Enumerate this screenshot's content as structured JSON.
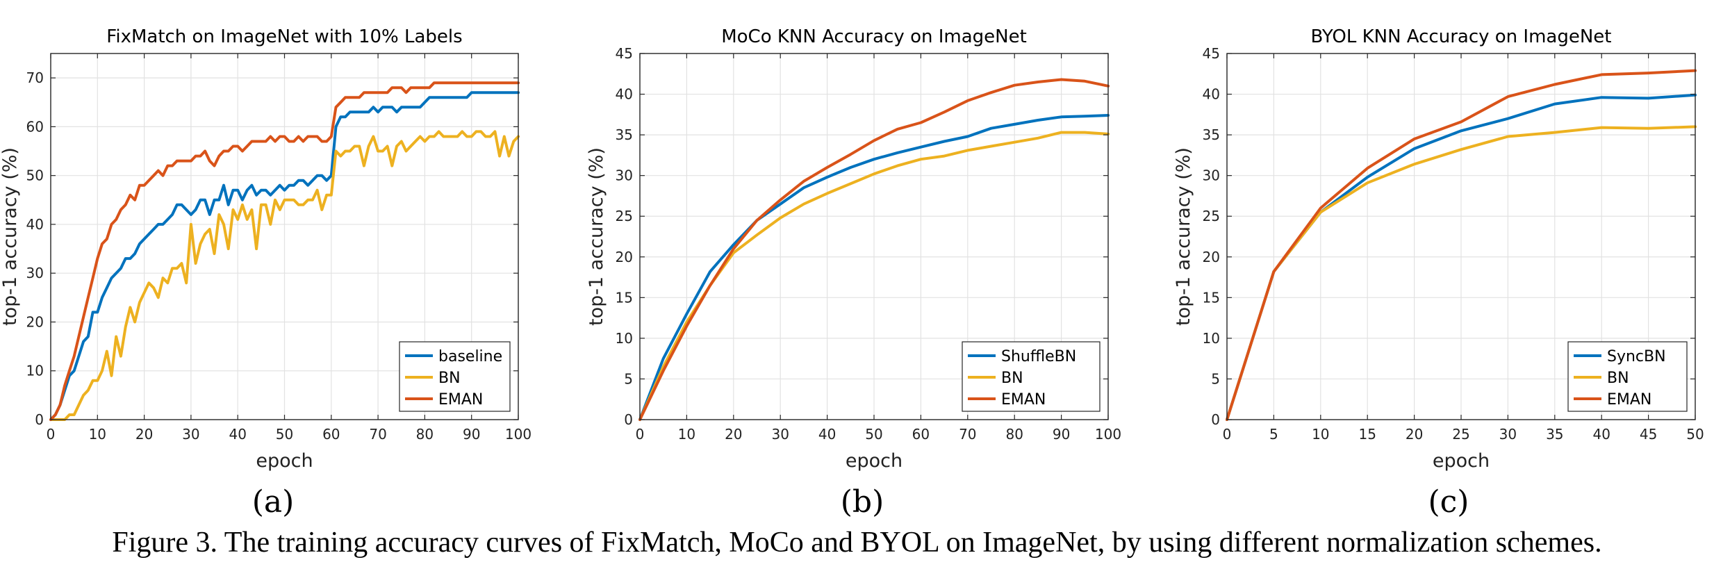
{
  "caption": "Figure 3. The training accuracy curves of FixMatch, MoCo and BYOL on ImageNet, by using different normalization schemes.",
  "colors": {
    "blue": "#0072BD",
    "yellow": "#EDB120",
    "orange": "#D95319"
  },
  "chart_data": [
    {
      "panel": "(a)",
      "type": "line",
      "title": "FixMatch on ImageNet with 10% Labels",
      "xlabel": "epoch",
      "ylabel": "top-1 accuracy (%)",
      "xlim": [
        0,
        100
      ],
      "ylim": [
        0,
        75
      ],
      "xticks": [
        0,
        10,
        20,
        30,
        40,
        50,
        60,
        70,
        80,
        90,
        100
      ],
      "yticks": [
        0,
        10,
        20,
        30,
        40,
        50,
        60,
        70
      ],
      "grid": true,
      "legend_position": "bottom-right",
      "series": [
        {
          "name": "baseline",
          "color": "#0072BD",
          "x": [
            0,
            1,
            2,
            3,
            4,
            5,
            6,
            7,
            8,
            9,
            10,
            11,
            12,
            13,
            14,
            15,
            16,
            17,
            18,
            19,
            20,
            21,
            22,
            23,
            24,
            25,
            26,
            27,
            28,
            29,
            30,
            31,
            32,
            33,
            34,
            35,
            36,
            37,
            38,
            39,
            40,
            41,
            42,
            43,
            44,
            45,
            46,
            47,
            48,
            49,
            50,
            51,
            52,
            53,
            54,
            55,
            56,
            57,
            58,
            59,
            60,
            61,
            62,
            63,
            64,
            65,
            66,
            67,
            68,
            69,
            70,
            71,
            72,
            73,
            74,
            75,
            76,
            77,
            78,
            79,
            80,
            81,
            82,
            83,
            84,
            85,
            86,
            87,
            88,
            89,
            90,
            91,
            92,
            93,
            94,
            95,
            96,
            97,
            98,
            99,
            100
          ],
          "y": [
            0,
            1,
            3,
            6,
            9,
            10,
            13,
            16,
            17,
            22,
            22,
            25,
            27,
            29,
            30,
            31,
            33,
            33,
            34,
            36,
            37,
            38,
            39,
            40,
            40,
            41,
            42,
            44,
            44,
            43,
            42,
            43,
            45,
            45,
            42,
            45,
            45,
            48,
            44,
            47,
            47,
            45,
            47,
            48,
            46,
            47,
            47,
            46,
            47,
            48,
            47,
            48,
            48,
            49,
            49,
            48,
            49,
            50,
            50,
            49,
            50,
            60,
            62,
            62,
            63,
            63,
            63,
            63,
            63,
            64,
            63,
            64,
            64,
            64,
            63,
            64,
            64,
            64,
            64,
            64,
            65,
            66,
            66,
            66,
            66,
            66,
            66,
            66,
            66,
            66,
            67,
            67,
            67,
            67,
            67,
            67,
            67,
            67,
            67,
            67,
            67
          ]
        },
        {
          "name": "BN",
          "color": "#EDB120",
          "x": [
            0,
            1,
            2,
            3,
            4,
            5,
            6,
            7,
            8,
            9,
            10,
            11,
            12,
            13,
            14,
            15,
            16,
            17,
            18,
            19,
            20,
            21,
            22,
            23,
            24,
            25,
            26,
            27,
            28,
            29,
            30,
            31,
            32,
            33,
            34,
            35,
            36,
            37,
            38,
            39,
            40,
            41,
            42,
            43,
            44,
            45,
            46,
            47,
            48,
            49,
            50,
            51,
            52,
            53,
            54,
            55,
            56,
            57,
            58,
            59,
            60,
            61,
            62,
            63,
            64,
            65,
            66,
            67,
            68,
            69,
            70,
            71,
            72,
            73,
            74,
            75,
            76,
            77,
            78,
            79,
            80,
            81,
            82,
            83,
            84,
            85,
            86,
            87,
            88,
            89,
            90,
            91,
            92,
            93,
            94,
            95,
            96,
            97,
            98,
            99,
            100
          ],
          "y": [
            0,
            0,
            0,
            0,
            1,
            1,
            3,
            5,
            6,
            8,
            8,
            10,
            14,
            9,
            17,
            13,
            19,
            23,
            20,
            24,
            26,
            28,
            27,
            25,
            29,
            28,
            31,
            31,
            32,
            28,
            40,
            32,
            36,
            38,
            39,
            34,
            42,
            40,
            35,
            43,
            41,
            44,
            41,
            43,
            35,
            44,
            44,
            40,
            45,
            43,
            45,
            45,
            45,
            44,
            44,
            45,
            45,
            47,
            43,
            46,
            46,
            55,
            54,
            55,
            55,
            56,
            56,
            52,
            56,
            58,
            55,
            55,
            56,
            52,
            56,
            57,
            55,
            56,
            57,
            58,
            57,
            58,
            58,
            59,
            58,
            58,
            58,
            58,
            59,
            58,
            58,
            59,
            59,
            58,
            58,
            59,
            54,
            58,
            54,
            57,
            58
          ]
        },
        {
          "name": "EMAN",
          "color": "#D95319",
          "x": [
            0,
            1,
            2,
            3,
            4,
            5,
            6,
            7,
            8,
            9,
            10,
            11,
            12,
            13,
            14,
            15,
            16,
            17,
            18,
            19,
            20,
            21,
            22,
            23,
            24,
            25,
            26,
            27,
            28,
            29,
            30,
            31,
            32,
            33,
            34,
            35,
            36,
            37,
            38,
            39,
            40,
            41,
            42,
            43,
            44,
            45,
            46,
            47,
            48,
            49,
            50,
            51,
            52,
            53,
            54,
            55,
            56,
            57,
            58,
            59,
            60,
            61,
            62,
            63,
            64,
            65,
            66,
            67,
            68,
            69,
            70,
            71,
            72,
            73,
            74,
            75,
            76,
            77,
            78,
            79,
            80,
            81,
            82,
            83,
            84,
            85,
            86,
            87,
            88,
            89,
            90,
            91,
            92,
            93,
            94,
            95,
            96,
            97,
            98,
            99,
            100
          ],
          "y": [
            0,
            1,
            3,
            7,
            10,
            13,
            17,
            21,
            25,
            29,
            33,
            36,
            37,
            40,
            41,
            43,
            44,
            46,
            45,
            48,
            48,
            49,
            50,
            51,
            50,
            52,
            52,
            53,
            53,
            53,
            53,
            54,
            54,
            55,
            53,
            52,
            54,
            55,
            55,
            56,
            56,
            55,
            56,
            57,
            57,
            57,
            57,
            58,
            57,
            58,
            58,
            57,
            57,
            58,
            57,
            58,
            58,
            58,
            57,
            57,
            58,
            64,
            65,
            66,
            66,
            66,
            66,
            67,
            67,
            67,
            67,
            67,
            67,
            68,
            68,
            68,
            67,
            68,
            68,
            68,
            68,
            68,
            69,
            69,
            69,
            69,
            69,
            69,
            69,
            69,
            69,
            69,
            69,
            69,
            69,
            69,
            69,
            69,
            69,
            69,
            69
          ]
        }
      ]
    },
    {
      "panel": "(b)",
      "type": "line",
      "title": "MoCo KNN Accuracy on ImageNet",
      "xlabel": "epoch",
      "ylabel": "top-1 accuracy (%)",
      "xlim": [
        0,
        100
      ],
      "ylim": [
        0,
        45
      ],
      "xticks": [
        0,
        10,
        20,
        30,
        40,
        50,
        60,
        70,
        80,
        90,
        100
      ],
      "yticks": [
        0,
        5,
        10,
        15,
        20,
        25,
        30,
        35,
        40,
        45
      ],
      "grid": true,
      "legend_position": "bottom-right",
      "series": [
        {
          "name": "ShuffleBN",
          "color": "#0072BD",
          "x": [
            0,
            5,
            10,
            15,
            20,
            25,
            30,
            35,
            40,
            45,
            50,
            55,
            60,
            65,
            70,
            75,
            80,
            85,
            90,
            95,
            100
          ],
          "y": [
            0,
            7.5,
            13,
            18.2,
            21.5,
            24.5,
            26.5,
            28.5,
            29.8,
            31,
            32,
            32.8,
            33.5,
            34.2,
            34.8,
            35.8,
            36.3,
            36.8,
            37.2,
            37.3,
            37.4
          ]
        },
        {
          "name": "BN",
          "color": "#EDB120",
          "x": [
            0,
            5,
            10,
            15,
            20,
            25,
            30,
            35,
            40,
            45,
            50,
            55,
            60,
            65,
            70,
            75,
            80,
            85,
            90,
            95,
            100
          ],
          "y": [
            0,
            6.5,
            12,
            16.5,
            20.5,
            22.7,
            24.8,
            26.5,
            27.8,
            29,
            30.2,
            31.2,
            32,
            32.4,
            33.1,
            33.6,
            34.1,
            34.6,
            35.3,
            35.3,
            35.1
          ]
        },
        {
          "name": "EMAN",
          "color": "#D95319",
          "x": [
            0,
            5,
            10,
            15,
            20,
            25,
            30,
            35,
            40,
            45,
            50,
            55,
            60,
            65,
            70,
            75,
            80,
            85,
            90,
            95,
            100
          ],
          "y": [
            0,
            6,
            11.5,
            16.5,
            21,
            24.5,
            27,
            29.3,
            31,
            32.6,
            34.3,
            35.7,
            36.5,
            37.8,
            39.2,
            40.2,
            41.1,
            41.5,
            41.8,
            41.6,
            41
          ]
        }
      ]
    },
    {
      "panel": "(c)",
      "type": "line",
      "title": "BYOL KNN Accuracy on ImageNet",
      "xlabel": "epoch",
      "ylabel": "top-1 accuracy (%)",
      "xlim": [
        0,
        50
      ],
      "ylim": [
        0,
        45
      ],
      "xticks": [
        0,
        5,
        10,
        15,
        20,
        25,
        30,
        35,
        40,
        45,
        50
      ],
      "yticks": [
        0,
        5,
        10,
        15,
        20,
        25,
        30,
        35,
        40,
        45
      ],
      "grid": true,
      "legend_position": "bottom-right",
      "series": [
        {
          "name": "SyncBN",
          "color": "#0072BD",
          "x": [
            0,
            5,
            10,
            15,
            20,
            25,
            30,
            35,
            40,
            45,
            50
          ],
          "y": [
            0,
            18.2,
            25.5,
            29.8,
            33.3,
            35.5,
            37,
            38.8,
            39.6,
            39.5,
            39.9
          ]
        },
        {
          "name": "BN",
          "color": "#EDB120",
          "x": [
            0,
            5,
            10,
            15,
            20,
            25,
            30,
            35,
            40,
            45,
            50
          ],
          "y": [
            0,
            18.2,
            25.5,
            29.1,
            31.4,
            33.2,
            34.8,
            35.3,
            35.9,
            35.8,
            36
          ]
        },
        {
          "name": "EMAN",
          "color": "#D95319",
          "x": [
            0,
            5,
            10,
            15,
            20,
            25,
            30,
            35,
            40,
            45,
            50
          ],
          "y": [
            0,
            18.2,
            26,
            30.9,
            34.5,
            36.6,
            39.7,
            41.2,
            42.4,
            42.6,
            42.9
          ]
        }
      ]
    }
  ]
}
